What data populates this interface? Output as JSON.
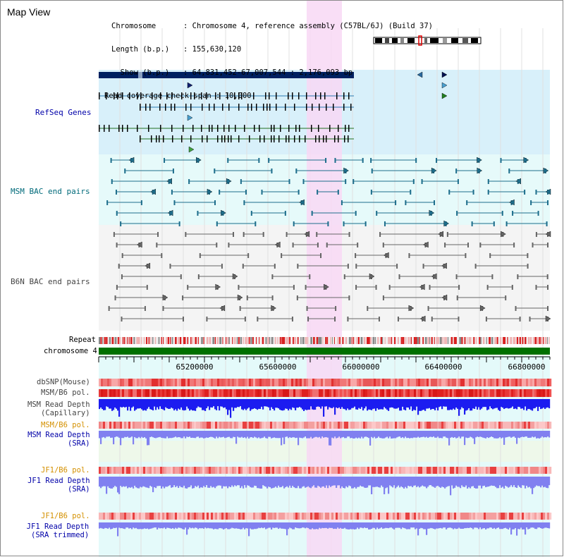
{
  "window": {
    "title": "Map View"
  },
  "info": {
    "chromosome_label": "Chromosome",
    "chromosome_value": ": Chromosome 4, reference assembly (C57BL/6J) (Build 37)",
    "length_label": "Length (b.p.)",
    "length_value": ": 155,630,120",
    "show_label": "  Show (b.p.)",
    "show_value": ": 64,831,452-67,007,544 : 2,176,093 bp",
    "coverage_label": "Read coverage check span",
    "coverage_value": ": 10,000"
  },
  "tracks": {
    "refseq": "RefSeq Genes",
    "msm_bac": "MSM BAC end pairs",
    "b6n_bac": "B6N BAC end pairs",
    "repeat": "Repeat",
    "chromosome": "chromosome 4",
    "dbsnp": "dbSNP(Mouse)",
    "msm_b6_pol": "MSM/B6 pol.",
    "msm_depth_cap_1": "MSM Read Depth",
    "msm_depth_cap_2": "(Capillary)",
    "msm_b6_pol_2": "MSM/B6 pol.",
    "msm_depth_sra_1": "MSM Read Depth",
    "msm_depth_sra_2": "(SRA)",
    "jf1_b6_pol": "JF1/B6 pol.",
    "jf1_depth_sra_1": "JF1 Read Depth",
    "jf1_depth_sra_2": "(SRA)",
    "jf1_b6_pol_2": "JF1/B6 pol.",
    "jf1_depth_trim_1": "JF1 Read Depth",
    "jf1_depth_trim_2": "(SRA trimmed)"
  },
  "axis": {
    "ticks": [
      "65200000",
      "65600000",
      "66000000",
      "66400000",
      "66800000"
    ]
  },
  "colors": {
    "refseq_bg": "#d8f0fa",
    "msm_bg": "#e6fafa",
    "b6n_bg": "#f4f4f4",
    "highlight": "#f8d8f4",
    "chromosome_bar": "#007000",
    "refseq_navy": "#002060",
    "msm_teal": "#1e6e8c",
    "b6n_gray": "#666666",
    "snp_red": "#e81c1c",
    "depth_blue": "#1c1cf0",
    "depth_lavender": "#8080f0"
  }
}
